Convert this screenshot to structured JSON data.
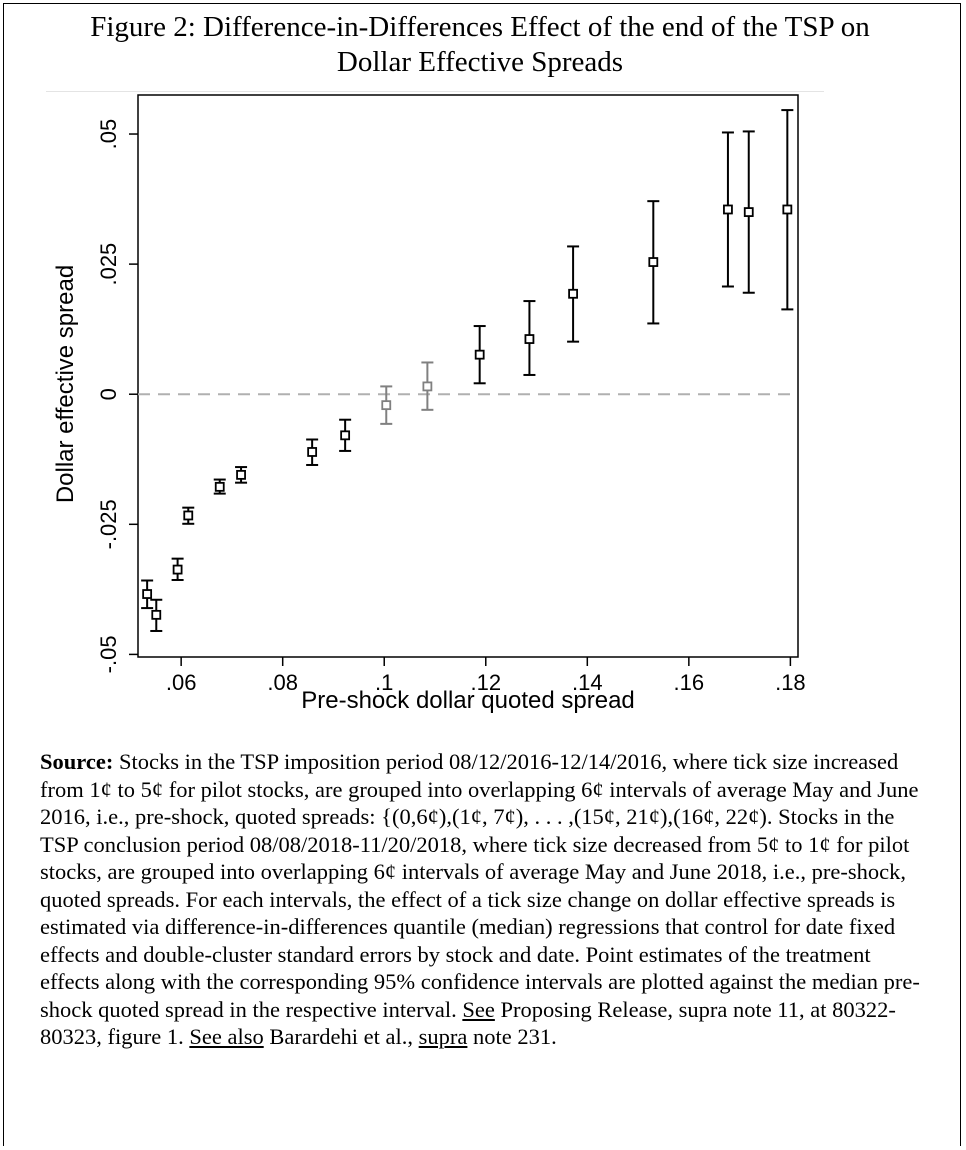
{
  "figure": {
    "title_line1": "Figure 2: Difference-in-Differences Effect of the end of the TSP on",
    "title_line2": "Dollar Effective Spreads"
  },
  "chart_data": {
    "type": "scatter",
    "title": "Figure 2: Difference-in-Differences Effect of the end of the TSP on Dollar Effective Spreads",
    "xlabel": "Pre-shock dollar quoted spread",
    "ylabel": "Dollar effective spread",
    "xlim": [
      0.0515,
      0.1815
    ],
    "ylim": [
      -0.0505,
      0.0575
    ],
    "x_ticks": [
      0.06,
      0.08,
      0.1,
      0.12,
      0.14,
      0.16,
      0.18
    ],
    "x_tick_labels": [
      ".06",
      ".08",
      ".1",
      ".12",
      ".14",
      ".16",
      ".18"
    ],
    "y_ticks": [
      -0.05,
      -0.025,
      0,
      0.025,
      0.05
    ],
    "y_tick_labels": [
      "-.05",
      "-.025",
      "0",
      ".025",
      ".05"
    ],
    "grid": false,
    "reference_line": {
      "y": 0,
      "style": "dashed",
      "color": "#b0b0b0"
    },
    "points": [
      {
        "x": 0.0533,
        "y": -0.0384,
        "lo": -0.0411,
        "hi": -0.0358,
        "color": "#000000"
      },
      {
        "x": 0.0551,
        "y": -0.0424,
        "lo": -0.0455,
        "hi": -0.0395,
        "color": "#000000"
      },
      {
        "x": 0.0593,
        "y": -0.0337,
        "lo": -0.0357,
        "hi": -0.0316,
        "color": "#000000"
      },
      {
        "x": 0.0614,
        "y": -0.0233,
        "lo": -0.0249,
        "hi": -0.0218,
        "color": "#000000"
      },
      {
        "x": 0.0676,
        "y": -0.0178,
        "lo": -0.0191,
        "hi": -0.0164,
        "color": "#000000"
      },
      {
        "x": 0.0718,
        "y": -0.0155,
        "lo": -0.017,
        "hi": -0.014,
        "color": "#000000"
      },
      {
        "x": 0.0858,
        "y": -0.0111,
        "lo": -0.0136,
        "hi": -0.0087,
        "color": "#000000"
      },
      {
        "x": 0.0923,
        "y": -0.0079,
        "lo": -0.0109,
        "hi": -0.0049,
        "color": "#000000"
      },
      {
        "x": 0.1004,
        "y": -0.0021,
        "lo": -0.0057,
        "hi": 0.0015,
        "color": "#808080"
      },
      {
        "x": 0.1085,
        "y": 0.0015,
        "lo": -0.003,
        "hi": 0.0061,
        "color": "#808080"
      },
      {
        "x": 0.1188,
        "y": 0.0076,
        "lo": 0.0021,
        "hi": 0.0131,
        "color": "#000000"
      },
      {
        "x": 0.1286,
        "y": 0.0106,
        "lo": 0.0037,
        "hi": 0.0179,
        "color": "#000000"
      },
      {
        "x": 0.1372,
        "y": 0.0193,
        "lo": 0.0101,
        "hi": 0.0284,
        "color": "#000000"
      },
      {
        "x": 0.153,
        "y": 0.0254,
        "lo": 0.0136,
        "hi": 0.0371,
        "color": "#000000"
      },
      {
        "x": 0.1677,
        "y": 0.0355,
        "lo": 0.0207,
        "hi": 0.0503,
        "color": "#000000"
      },
      {
        "x": 0.1718,
        "y": 0.035,
        "lo": 0.0195,
        "hi": 0.0505,
        "color": "#000000"
      },
      {
        "x": 0.1794,
        "y": 0.0355,
        "lo": 0.0163,
        "hi": 0.0546,
        "color": "#000000"
      }
    ]
  },
  "caption": {
    "source_label": "Source:",
    "text_1": " Stocks in the TSP imposition period 08/12/2016-12/14/2016, where tick size increased from 1¢ to 5¢ for pilot stocks, are grouped into overlapping 6¢ intervals of average May and June 2016, i.e., pre-shock, quoted spreads: {(0,6¢),(1¢, 7¢), . . . ,(15¢, 21¢),(16¢, 22¢). Stocks in the TSP conclusion period 08/08/2018-11/20/2018, where tick size decreased from 5¢ to 1¢ for pilot stocks, are grouped into overlapping 6¢ intervals of average May and June 2018, i.e., pre-shock, quoted spreads. For each intervals, the effect of a tick size change on dollar effective spreads is estimated via difference-in-differences quantile (median) regressions that control for date fixed effects and double-cluster standard errors by stock and date. Point estimates of the treatment effects along with the corresponding 95% confidence intervals are plotted against the median pre-shock quoted spread in the respective interval. ",
    "see": "See",
    "text_2": " Proposing Release, supra note 11, at 80322-80323, figure 1. ",
    "see_also": "See also",
    "text_3": " Barardehi et al., ",
    "supra": "supra",
    "text_4": " note 231."
  }
}
